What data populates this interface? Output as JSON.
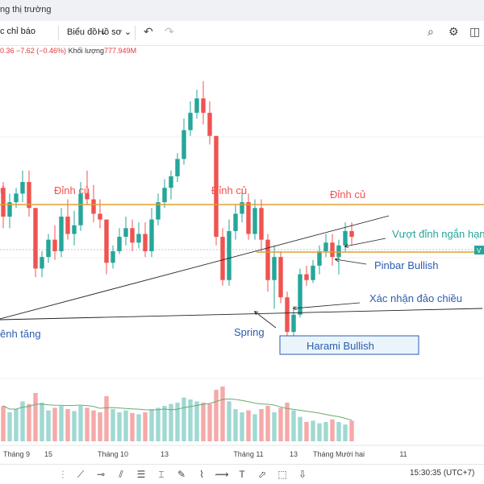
{
  "window": {
    "title": "ng thị trường"
  },
  "toolbar": {
    "indicators_label": "c chỉ báo",
    "charts_label": "Biểu đồ",
    "profile_label": "Hồ sơ"
  },
  "legend": {
    "values": "0.36  −7.62 (−0.46%)",
    "volume_label": "Khối lượng",
    "volume_value": "777.949M"
  },
  "chart_data": {
    "type": "candlestick",
    "x_ticks": [
      "Tháng 9",
      "15",
      "Tháng 10",
      "13",
      "Tháng 11",
      "13",
      "Tháng Mười hai",
      "11"
    ],
    "candles": [
      [
        0.6,
        0.62,
        0.46,
        0.5
      ],
      [
        0.5,
        0.58,
        0.46,
        0.55
      ],
      [
        0.55,
        0.6,
        0.53,
        0.58
      ],
      [
        0.58,
        0.66,
        0.55,
        0.62
      ],
      [
        0.62,
        0.66,
        0.5,
        0.53
      ],
      [
        0.53,
        0.53,
        0.29,
        0.32
      ],
      [
        0.32,
        0.38,
        0.29,
        0.36
      ],
      [
        0.36,
        0.44,
        0.34,
        0.42
      ],
      [
        0.42,
        0.47,
        0.35,
        0.38
      ],
      [
        0.38,
        0.53,
        0.36,
        0.5
      ],
      [
        0.5,
        0.56,
        0.42,
        0.44
      ],
      [
        0.44,
        0.52,
        0.4,
        0.47
      ],
      [
        0.47,
        0.62,
        0.45,
        0.58
      ],
      [
        0.58,
        0.66,
        0.54,
        0.56
      ],
      [
        0.56,
        0.61,
        0.48,
        0.51
      ],
      [
        0.51,
        0.56,
        0.46,
        0.49
      ],
      [
        0.49,
        0.49,
        0.3,
        0.34
      ],
      [
        0.34,
        0.4,
        0.32,
        0.38
      ],
      [
        0.38,
        0.46,
        0.37,
        0.43
      ],
      [
        0.43,
        0.5,
        0.4,
        0.46
      ],
      [
        0.46,
        0.49,
        0.38,
        0.41
      ],
      [
        0.41,
        0.48,
        0.39,
        0.44
      ],
      [
        0.44,
        0.48,
        0.36,
        0.38
      ],
      [
        0.38,
        0.53,
        0.36,
        0.49
      ],
      [
        0.49,
        0.58,
        0.47,
        0.55
      ],
      [
        0.55,
        0.63,
        0.53,
        0.6
      ],
      [
        0.6,
        0.66,
        0.56,
        0.64
      ],
      [
        0.64,
        0.72,
        0.62,
        0.7
      ],
      [
        0.7,
        0.84,
        0.68,
        0.8
      ],
      [
        0.8,
        0.9,
        0.78,
        0.86
      ],
      [
        0.86,
        0.94,
        0.84,
        0.91
      ],
      [
        0.91,
        0.97,
        0.82,
        0.86
      ],
      [
        0.86,
        0.9,
        0.75,
        0.78
      ],
      [
        0.78,
        0.78,
        0.4,
        0.43
      ],
      [
        0.43,
        0.46,
        0.26,
        0.28
      ],
      [
        0.28,
        0.49,
        0.26,
        0.45
      ],
      [
        0.45,
        0.54,
        0.42,
        0.51
      ],
      [
        0.51,
        0.59,
        0.48,
        0.55
      ],
      [
        0.55,
        0.58,
        0.42,
        0.44
      ],
      [
        0.44,
        0.56,
        0.42,
        0.53
      ],
      [
        0.53,
        0.56,
        0.38,
        0.42
      ],
      [
        0.42,
        0.44,
        0.24,
        0.28
      ],
      [
        0.28,
        0.4,
        0.18,
        0.36
      ],
      [
        0.36,
        0.38,
        0.2,
        0.22
      ],
      [
        0.22,
        0.24,
        0.07,
        0.1
      ],
      [
        0.1,
        0.19,
        0.08,
        0.16
      ],
      [
        0.16,
        0.32,
        0.15,
        0.3
      ],
      [
        0.3,
        0.33,
        0.26,
        0.28
      ],
      [
        0.28,
        0.35,
        0.27,
        0.33
      ],
      [
        0.33,
        0.4,
        0.3,
        0.38
      ],
      [
        0.38,
        0.44,
        0.36,
        0.41
      ],
      [
        0.41,
        0.44,
        0.33,
        0.36
      ],
      [
        0.36,
        0.42,
        0.3,
        0.4
      ],
      [
        0.4,
        0.48,
        0.38,
        0.45
      ],
      [
        0.45,
        0.48,
        0.4,
        0.43
      ]
    ],
    "volumes": [
      0.55,
      0.45,
      0.5,
      0.62,
      0.58,
      0.75,
      0.6,
      0.48,
      0.52,
      0.55,
      0.5,
      0.47,
      0.55,
      0.52,
      0.48,
      0.45,
      0.7,
      0.5,
      0.45,
      0.48,
      0.44,
      0.42,
      0.45,
      0.5,
      0.52,
      0.55,
      0.58,
      0.6,
      0.68,
      0.65,
      0.62,
      0.6,
      0.58,
      0.8,
      0.85,
      0.62,
      0.5,
      0.45,
      0.48,
      0.42,
      0.5,
      0.55,
      0.45,
      0.52,
      0.6,
      0.48,
      0.38,
      0.3,
      0.32,
      0.28,
      0.3,
      0.34,
      0.3,
      0.26,
      0.32
    ],
    "annotations": {
      "old_peak_1": "Đỉnh củ",
      "old_peak_2": "Đỉnh củ",
      "old_peak_3": "Đỉnh củ",
      "old_peak_left": "ủ",
      "breakout": "Vượt đỉnh ngắn hạn",
      "pinbar": "Pinbar Bullish",
      "reversal": "Xác nhận đảo chiều",
      "spring": "Spring",
      "harami": "Harami Bullish",
      "uptrend": "ênh tăng",
      "price_tag": "V"
    },
    "colors": {
      "up": "#26a69a",
      "down": "#ef5350",
      "resistance": "#e0a030",
      "annotation": "#2a5db0"
    }
  },
  "bottombar": {
    "time": "15:30:35 (UTC+7)"
  }
}
